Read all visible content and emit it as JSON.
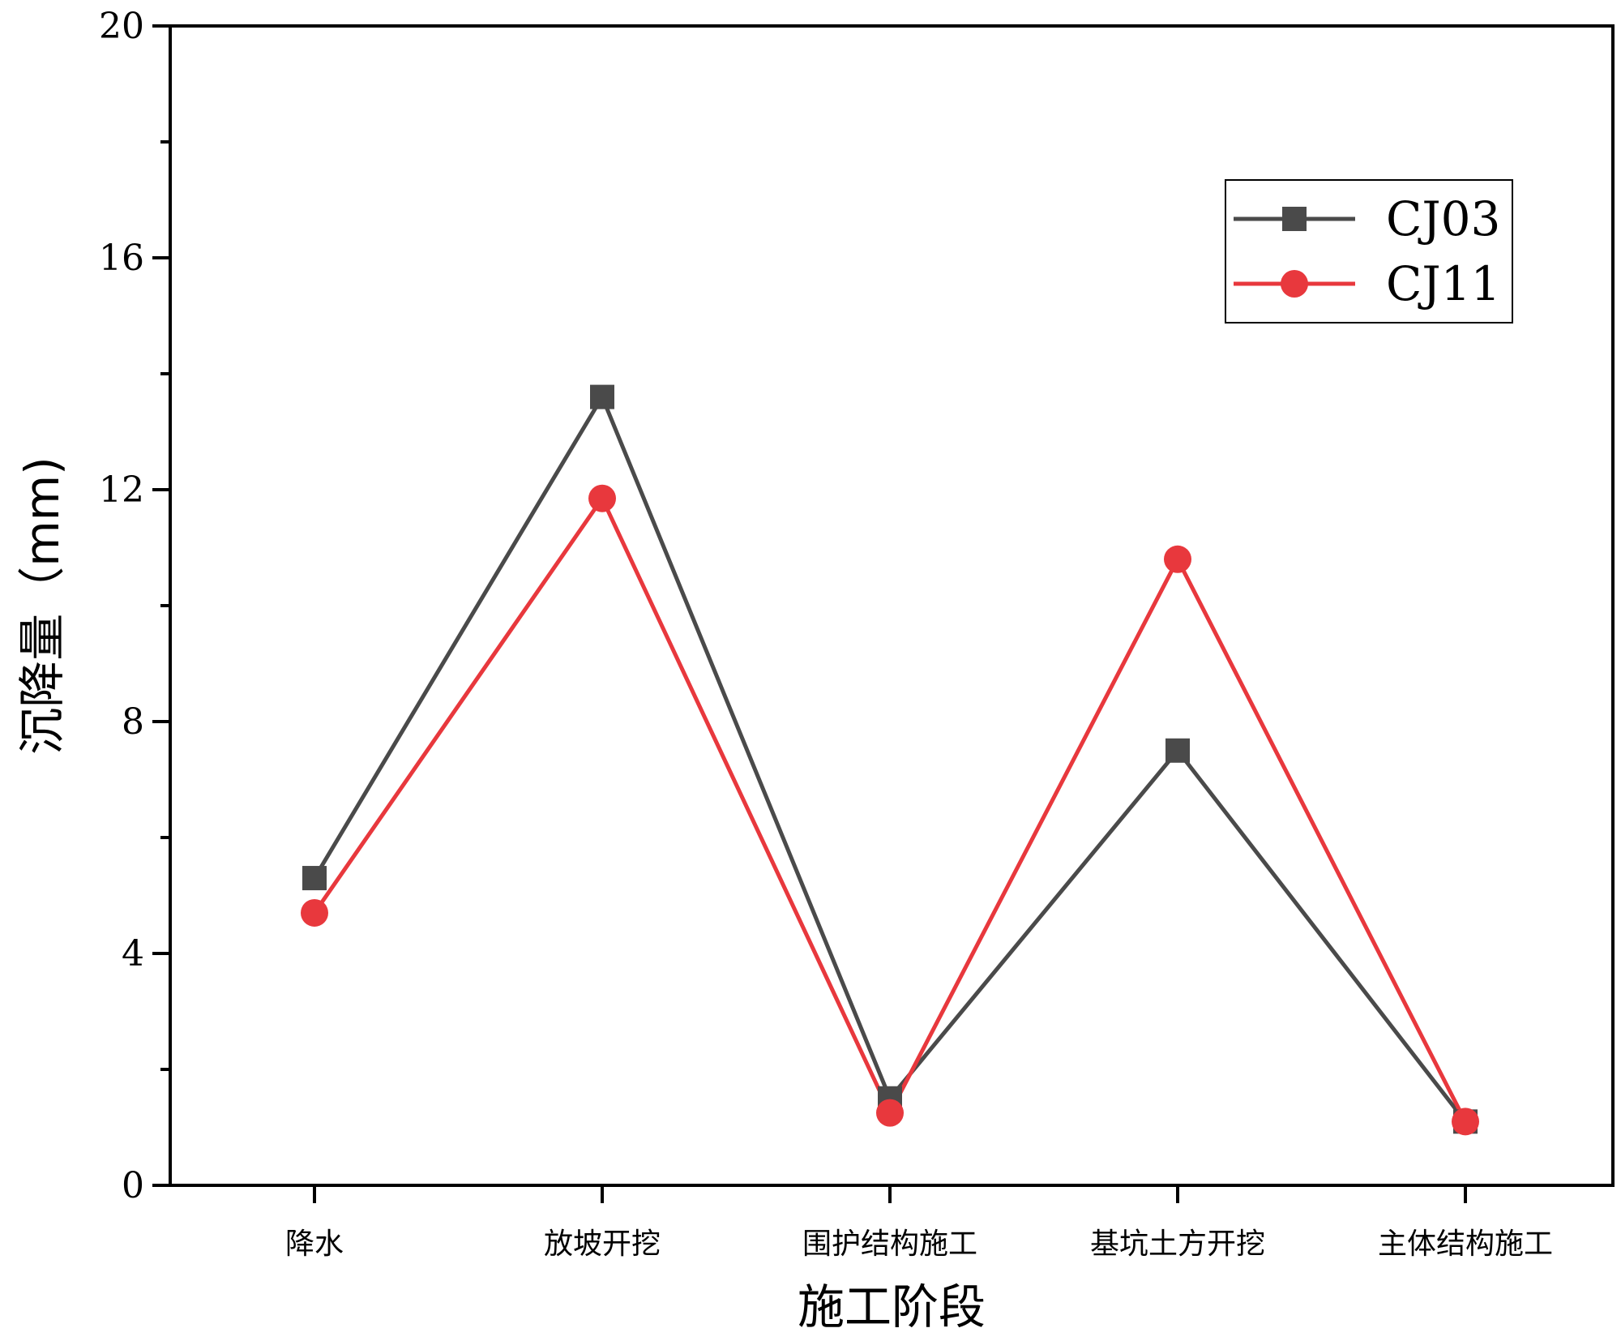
{
  "chart_data": {
    "type": "line",
    "categories": [
      "降水",
      "放坡开挖",
      "围护结构施工",
      "基坑土方开挖",
      "主体结构施工"
    ],
    "series": [
      {
        "name": "CJ03",
        "values": [
          5.3,
          13.6,
          1.5,
          7.5,
          1.1
        ],
        "color": "#4a4a4a",
        "marker": "square"
      },
      {
        "name": "CJ11",
        "values": [
          4.7,
          11.85,
          1.25,
          10.8,
          1.1
        ],
        "color": "#e8383d",
        "marker": "circle"
      }
    ],
    "title": "",
    "xlabel": "施工阶段",
    "ylabel": "沉降量（mm)",
    "ylim": [
      0,
      20
    ],
    "yticks": [
      0,
      4,
      8,
      12,
      16,
      20
    ],
    "grid": false,
    "legend_position": "top-right"
  }
}
